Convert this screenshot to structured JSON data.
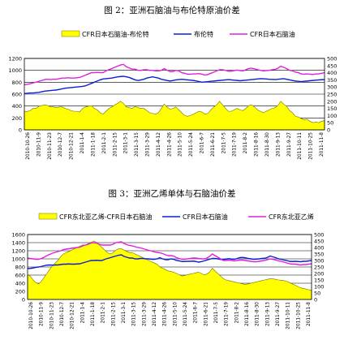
{
  "captions": {
    "fig1": "图 2：亚洲石脑油与布伦特原油价差",
    "fig2": "图 3：亚洲乙烯单体与石脑油价差"
  },
  "colors": {
    "fill": "#FFFF00",
    "fill_stroke": "#707000",
    "brent": "#0A1FD4",
    "naphtha": "#E020E0",
    "grid": "#000000"
  },
  "chart_data": [
    {
      "type": "area",
      "legend_position": "top",
      "grid": true,
      "left_axis": {
        "ticks": [
          0,
          200,
          400,
          600,
          800,
          1000,
          1200
        ],
        "ylim": [
          0,
          1200
        ]
      },
      "right_axis": {
        "ticks": [
          0,
          50,
          100,
          150,
          200,
          250,
          300,
          350,
          400,
          450,
          500
        ],
        "ylim": [
          0,
          500
        ]
      },
      "x_ticks": [
        "2010-10-26",
        "2010-11-9",
        "2010-11-23",
        "2010-12-7",
        "2010-12-21",
        "2011-1-4",
        "2011-1-18",
        "2011-2-1",
        "2011-2-15",
        "2011-3-1",
        "2011-3-15",
        "2011-3-29",
        "2011-4-12",
        "2011-4-26",
        "2011-5-10",
        "2011-5-24",
        "2011-6-7",
        "2011-6-21",
        "2011-7-5",
        "2011-7-19",
        "2011-8-2",
        "2011-8-16",
        "2011-8-30",
        "2011-9-13",
        "2011-9-27",
        "2011-10-11",
        "2011-10-25",
        "2011-11-8"
      ],
      "series": [
        {
          "name": "CFR日本石脑油-布伦特",
          "axis": "right",
          "kind": "area",
          "values": [
            130,
            128,
            135,
            150,
            150,
            165,
            170,
            175,
            170,
            160,
            160,
            155,
            160,
            160,
            150,
            145,
            135,
            130,
            130,
            125,
            150,
            160,
            165,
            170,
            150,
            140,
            120,
            110,
            130,
            150,
            160,
            175,
            185,
            200,
            185,
            160,
            155,
            150,
            165,
            155,
            150,
            150,
            135,
            120,
            115,
            110,
            120,
            150,
            180,
            160,
            145,
            150,
            160,
            140,
            120,
            100,
            95,
            100,
            110,
            120,
            130,
            125,
            110,
            115,
            140,
            160,
            175,
            200,
            175,
            150,
            130,
            130,
            140,
            150,
            140,
            135,
            150,
            170,
            175,
            160,
            140,
            130,
            120,
            130,
            140,
            150,
            155,
            170,
            200,
            180,
            165,
            135,
            120,
            95,
            90,
            80,
            70,
            75,
            60,
            50,
            55,
            50,
            60,
            65
          ]
        },
        {
          "name": "布伦特",
          "axis": "left",
          "kind": "line",
          "values": [
            610,
            615,
            620,
            620,
            625,
            630,
            640,
            650,
            655,
            660,
            665,
            670,
            680,
            690,
            700,
            705,
            710,
            715,
            720,
            725,
            730,
            740,
            760,
            780,
            800,
            820,
            840,
            855,
            860,
            865,
            870,
            880,
            890,
            895,
            900,
            890,
            880,
            860,
            840,
            830,
            840,
            850,
            870,
            880,
            890,
            880,
            870,
            850,
            840,
            830,
            820,
            830,
            840,
            845,
            850,
            845,
            840,
            835,
            830,
            820,
            810,
            800,
            805,
            810,
            815,
            820,
            825,
            830,
            835,
            840,
            845,
            840,
            835,
            830,
            825,
            830,
            835,
            840,
            845,
            850,
            855,
            860,
            858,
            855,
            850,
            848,
            845,
            850,
            855,
            860,
            850,
            840,
            830,
            820,
            815,
            810,
            815,
            820,
            825,
            830,
            835,
            840,
            842,
            845
          ]
        },
        {
          "name": "CFR日本石脑油",
          "axis": "left",
          "kind": "line",
          "values": [
            760,
            765,
            775,
            790,
            800,
            815,
            830,
            845,
            850,
            845,
            850,
            850,
            860,
            870,
            870,
            875,
            870,
            870,
            875,
            880,
            900,
            920,
            940,
            960,
            960,
            965,
            960,
            960,
            990,
            1010,
            1030,
            1050,
            1070,
            1090,
            1100,
            1060,
            1040,
            1020,
            1020,
            1000,
            1000,
            1010,
            1010,
            1000,
            1000,
            990,
            990,
            1000,
            1030,
            1000,
            980,
            980,
            1000,
            990,
            960,
            950,
            935,
            935,
            940,
            940,
            945,
            935,
            920,
            930,
            950,
            970,
            990,
            1010,
            1010,
            1000,
            985,
            985,
            995,
            1005,
            995,
            990,
            1010,
            1030,
            1035,
            1025,
            1010,
            1000,
            990,
            995,
            1000,
            1010,
            1015,
            1035,
            1070,
            1050,
            1030,
            1000,
            990,
            970,
            960,
            940,
            935,
            940,
            935,
            930,
            940,
            940,
            950,
            960
          ]
        }
      ]
    },
    {
      "type": "area",
      "legend_position": "top",
      "grid": true,
      "left_axis": {
        "ticks": [
          0,
          200,
          400,
          600,
          800,
          1000,
          1200,
          1400,
          1600
        ],
        "ylim": [
          0,
          1600
        ]
      },
      "right_axis": {
        "ticks": [
          0,
          50,
          100,
          150,
          200,
          250,
          300,
          350,
          400,
          450,
          500
        ],
        "ylim": [
          0,
          500
        ]
      },
      "x_ticks": [
        "2010-10-26",
        "2010-11-9",
        "2010-11-23",
        "2010-12-7",
        "2010-12-21",
        "2011-1-4",
        "2011-1-18",
        "2011-2-1",
        "2011-2-15",
        "2011-3-1",
        "2011-3-15",
        "2011-3-29",
        "2011-4-12",
        "2011-4-26",
        "2011-5-10",
        "2011-5-24",
        "2011-6-7",
        "2011-6-21",
        "2011-7-5",
        "2011-7-19",
        "2011-8-2",
        "2011-8-16",
        "2011-8-30",
        "2011-9-13",
        "2011-9-27",
        "2011-10-11",
        "2011-10-25",
        "2011-11-8"
      ],
      "series": [
        {
          "name": "CFR东北亚乙烯-CFR日本石脑油",
          "axis": "right",
          "kind": "area",
          "values": [
            190,
            180,
            150,
            130,
            120,
            140,
            170,
            200,
            230,
            260,
            280,
            300,
            330,
            350,
            360,
            370,
            380,
            390,
            400,
            410,
            420,
            420,
            430,
            440,
            450,
            440,
            420,
            400,
            380,
            360,
            350,
            360,
            380,
            390,
            390,
            380,
            370,
            360,
            360,
            350,
            340,
            330,
            320,
            310,
            300,
            290,
            280,
            270,
            250,
            240,
            230,
            220,
            215,
            210,
            200,
            190,
            180,
            185,
            190,
            195,
            200,
            205,
            210,
            200,
            190,
            195,
            210,
            240,
            220,
            200,
            180,
            160,
            150,
            145,
            140,
            135,
            130,
            125,
            120,
            115,
            120,
            125,
            130,
            135,
            140,
            145,
            150,
            155,
            160,
            158,
            155,
            150,
            148,
            145,
            140,
            130,
            120,
            110,
            100,
            90,
            85,
            80,
            75,
            70
          ]
        },
        {
          "name": "CFR日本石脑油",
          "axis": "left",
          "kind": "line",
          "values": [
            760,
            765,
            775,
            790,
            800,
            815,
            830,
            845,
            850,
            845,
            850,
            850,
            860,
            870,
            870,
            875,
            870,
            870,
            875,
            880,
            900,
            920,
            940,
            960,
            960,
            965,
            960,
            960,
            990,
            1010,
            1030,
            1050,
            1070,
            1090,
            1100,
            1060,
            1040,
            1020,
            1020,
            1000,
            1000,
            1010,
            1010,
            1000,
            1000,
            990,
            990,
            1000,
            1030,
            1000,
            980,
            980,
            1000,
            990,
            960,
            950,
            935,
            935,
            940,
            940,
            945,
            935,
            920,
            930,
            950,
            970,
            990,
            1010,
            1010,
            1000,
            985,
            985,
            995,
            1005,
            995,
            990,
            1010,
            1030,
            1035,
            1025,
            1010,
            1000,
            990,
            995,
            1000,
            1010,
            1015,
            1035,
            1070,
            1050,
            1030,
            1000,
            990,
            970,
            960,
            940,
            935,
            940,
            935,
            930,
            940,
            940,
            950,
            960
          ]
        },
        {
          "name": "CFR东北亚乙烯",
          "axis": "left",
          "kind": "line",
          "values": [
            1020,
            1010,
            1000,
            990,
            990,
            1010,
            1040,
            1080,
            1110,
            1140,
            1160,
            1180,
            1200,
            1230,
            1240,
            1250,
            1260,
            1270,
            1280,
            1290,
            1320,
            1340,
            1360,
            1390,
            1400,
            1390,
            1360,
            1340,
            1340,
            1340,
            1340,
            1360,
            1400,
            1410,
            1420,
            1380,
            1350,
            1330,
            1320,
            1300,
            1280,
            1270,
            1250,
            1230,
            1210,
            1190,
            1170,
            1160,
            1150,
            1130,
            1100,
            1080,
            1080,
            1070,
            1030,
            1010,
            990,
            990,
            1000,
            1010,
            1020,
            1020,
            1010,
            1000,
            1000,
            1020,
            1060,
            1120,
            1080,
            1040,
            1000,
            960,
            960,
            970,
            960,
            950,
            960,
            970,
            970,
            960,
            950,
            940,
            930,
            930,
            940,
            950,
            960,
            980,
            1000,
            990,
            970,
            950,
            940,
            920,
            900,
            880,
            870,
            870,
            860,
            850,
            860,
            860,
            870,
            880
          ]
        }
      ]
    }
  ]
}
